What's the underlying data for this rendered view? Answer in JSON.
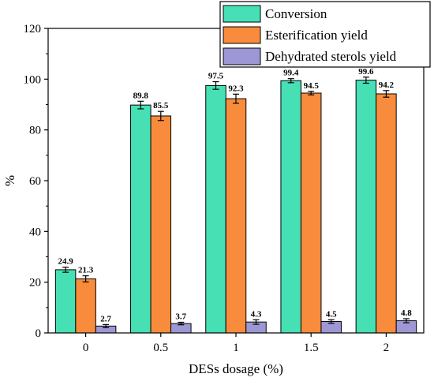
{
  "chart_data": {
    "type": "bar",
    "title": "",
    "xlabel": "DESs dosage (%)",
    "ylabel": "%",
    "categories": [
      "0",
      "0.5",
      "1",
      "1.5",
      "2"
    ],
    "ylim": [
      0,
      120
    ],
    "yticks": [
      0,
      20,
      40,
      60,
      80,
      100,
      120
    ],
    "legend_position": "top-right",
    "series": [
      {
        "name": "Conversion",
        "color": "#47e0b5",
        "values": [
          24.9,
          89.8,
          97.5,
          99.4,
          99.6
        ],
        "labels": [
          "24.9",
          "89.8",
          "97.5",
          "99.4",
          "99.6"
        ],
        "errors": [
          1.0,
          1.5,
          1.5,
          0.8,
          1.2
        ]
      },
      {
        "name": "Esterification yield",
        "color": "#f98c3c",
        "values": [
          21.3,
          85.5,
          92.3,
          94.5,
          94.2
        ],
        "labels": [
          "21.3",
          "85.5",
          "92.3",
          "94.5",
          "94.2"
        ],
        "errors": [
          1.2,
          1.8,
          1.8,
          0.7,
          1.3
        ]
      },
      {
        "name": "Dehydrated sterols yield",
        "color": "#9d97d6",
        "values": [
          2.7,
          3.7,
          4.3,
          4.5,
          4.8
        ],
        "labels": [
          "2.7",
          "3.7",
          "4.3",
          "4.5",
          "4.8"
        ],
        "errors": [
          0.6,
          0.5,
          0.9,
          0.7,
          0.8
        ]
      }
    ]
  }
}
